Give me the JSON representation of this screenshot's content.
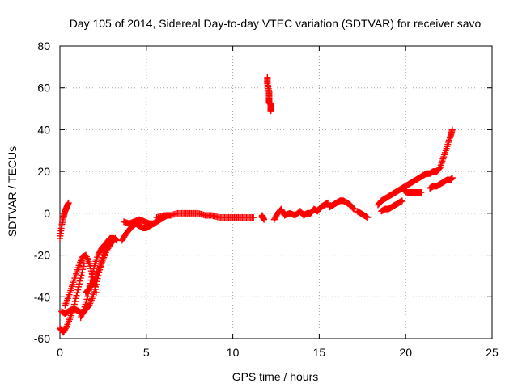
{
  "chart_data": {
    "type": "scatter",
    "title": "Day 105 of 2014, Sidereal Day-to-day VTEC variation (SDTVAR) for receiver savo",
    "xlabel": "GPS time / hours",
    "ylabel": "SDTVAR / TECUs",
    "xlim": [
      0,
      25
    ],
    "ylim": [
      -60,
      80
    ],
    "xticks": [
      "0",
      "5",
      "10",
      "15",
      "20",
      "25"
    ],
    "yticks": [
      "-60",
      "-40",
      "-20",
      "0",
      "20",
      "40",
      "60",
      "80"
    ],
    "grid": true,
    "marker": "plus",
    "color": "#ff0000",
    "segments": [
      {
        "x": [
          0.0,
          0.1,
          0.2,
          0.3,
          0.4,
          0.5
        ],
        "y": [
          -12,
          -6,
          -2,
          1,
          3,
          5
        ]
      },
      {
        "x": [
          0.1,
          0.3,
          0.5,
          0.7,
          0.9,
          1.1,
          1.3,
          1.5,
          1.7,
          1.9,
          2.1,
          2.3,
          2.5,
          2.7,
          2.9,
          3.1,
          3.3
        ],
        "y": [
          -47,
          -48,
          -47,
          -46,
          -46,
          -47,
          -48,
          -46,
          -44,
          -40,
          -34,
          -27,
          -20,
          -14,
          -12,
          -12,
          -13
        ]
      },
      {
        "x": [
          0.0,
          0.2,
          0.4,
          0.6,
          0.8,
          1.0,
          1.2,
          1.4
        ],
        "y": [
          -55,
          -57,
          -54,
          -50,
          -45,
          -38,
          -31,
          -24
        ]
      },
      {
        "x": [
          0.3,
          0.5,
          0.7,
          0.9,
          1.1,
          1.3,
          1.5,
          1.7,
          1.9,
          2.1
        ],
        "y": [
          -44,
          -40,
          -35,
          -30,
          -25,
          -21,
          -20,
          -24,
          -30,
          -38
        ]
      },
      {
        "x": [
          1.2,
          1.4,
          1.6,
          1.8,
          2.0,
          2.2,
          2.4,
          2.6,
          2.8,
          3.0,
          3.2
        ],
        "y": [
          -50,
          -46,
          -40,
          -32,
          -25,
          -20,
          -17,
          -15,
          -14,
          -13,
          -12
        ]
      },
      {
        "x": [
          1.5,
          1.7,
          1.9,
          2.1,
          2.3,
          2.5,
          2.7,
          2.9,
          3.1
        ],
        "y": [
          -38,
          -36,
          -33,
          -30,
          -26,
          -22,
          -18,
          -15,
          -13
        ]
      },
      {
        "x": [
          3.6,
          3.8,
          4.0,
          4.2,
          4.4,
          4.6,
          4.8,
          5.0,
          5.2,
          5.4,
          5.6,
          5.8,
          6.0,
          6.2,
          6.4
        ],
        "y": [
          -13,
          -10,
          -8,
          -6,
          -5,
          -6,
          -7,
          -7,
          -6,
          -5,
          -4,
          -3,
          -2,
          -1,
          -1
        ]
      },
      {
        "x": [
          3.7,
          4.0,
          4.3,
          4.6,
          4.9,
          5.2,
          5.5
        ],
        "y": [
          -4,
          -5,
          -4,
          -3,
          -4,
          -5,
          -5
        ]
      },
      {
        "x": [
          5.6,
          6.0,
          6.4,
          6.8,
          7.2,
          7.6,
          8.0,
          8.4,
          8.8,
          9.2,
          9.6,
          10.0,
          10.4,
          10.8,
          11.2
        ],
        "y": [
          -2,
          -1,
          -1,
          0,
          0,
          0,
          0,
          -1,
          -1,
          -2,
          -2,
          -2,
          -2,
          -2,
          -2
        ]
      },
      {
        "x": [
          11.7,
          11.7,
          11.8
        ],
        "y": [
          -2,
          -1,
          -3
        ]
      },
      {
        "x": [
          12.0,
          12.0,
          12.1,
          12.1,
          12.1,
          12.2,
          12.2,
          12.2
        ],
        "y": [
          65,
          62,
          58,
          55,
          53,
          52,
          50,
          49
        ]
      },
      {
        "x": [
          12.4,
          12.6,
          12.8,
          13.0,
          13.3,
          13.6,
          13.9,
          14.1,
          14.3,
          14.5,
          14.7,
          14.9,
          15.1,
          15.3,
          15.5
        ],
        "y": [
          -3,
          0,
          2,
          -1,
          0,
          -1,
          1,
          -1,
          0,
          0,
          2,
          1,
          3,
          4,
          5
        ]
      },
      {
        "x": [
          15.6,
          15.8,
          16.0,
          16.2,
          16.4,
          16.6,
          16.8,
          17.0
        ],
        "y": [
          3,
          4,
          5,
          6,
          6,
          5,
          4,
          2
        ]
      },
      {
        "x": [
          17.2,
          17.4,
          17.6,
          17.8
        ],
        "y": [
          1,
          0,
          -1,
          -2
        ]
      },
      {
        "x": [
          18.4,
          18.6,
          18.8,
          19.0,
          19.2,
          19.4,
          19.6,
          19.8,
          20.0,
          20.2,
          20.4,
          20.6,
          20.8,
          21.0
        ],
        "y": [
          4,
          6,
          7,
          8,
          9,
          10,
          11,
          12,
          13,
          14,
          15,
          16,
          17,
          18
        ]
      },
      {
        "x": [
          18.6,
          18.8,
          19.0,
          19.2,
          19.4,
          19.6,
          19.8
        ],
        "y": [
          1,
          2,
          2,
          3,
          4,
          5,
          6
        ]
      },
      {
        "x": [
          19.9,
          20.1,
          20.3,
          20.5,
          20.7,
          20.9
        ],
        "y": [
          11,
          10,
          10,
          10,
          10,
          10
        ]
      },
      {
        "x": [
          21.0,
          21.2,
          21.4,
          21.6,
          21.8,
          22.0,
          22.2,
          22.4,
          22.6,
          22.7
        ],
        "y": [
          18,
          19,
          19,
          20,
          20,
          22,
          27,
          32,
          37,
          40
        ]
      },
      {
        "x": [
          21.4,
          21.6,
          21.8,
          22.0,
          22.2,
          22.4,
          22.6,
          22.7
        ],
        "y": [
          12,
          13,
          13,
          14,
          15,
          16,
          16,
          17
        ]
      }
    ]
  }
}
